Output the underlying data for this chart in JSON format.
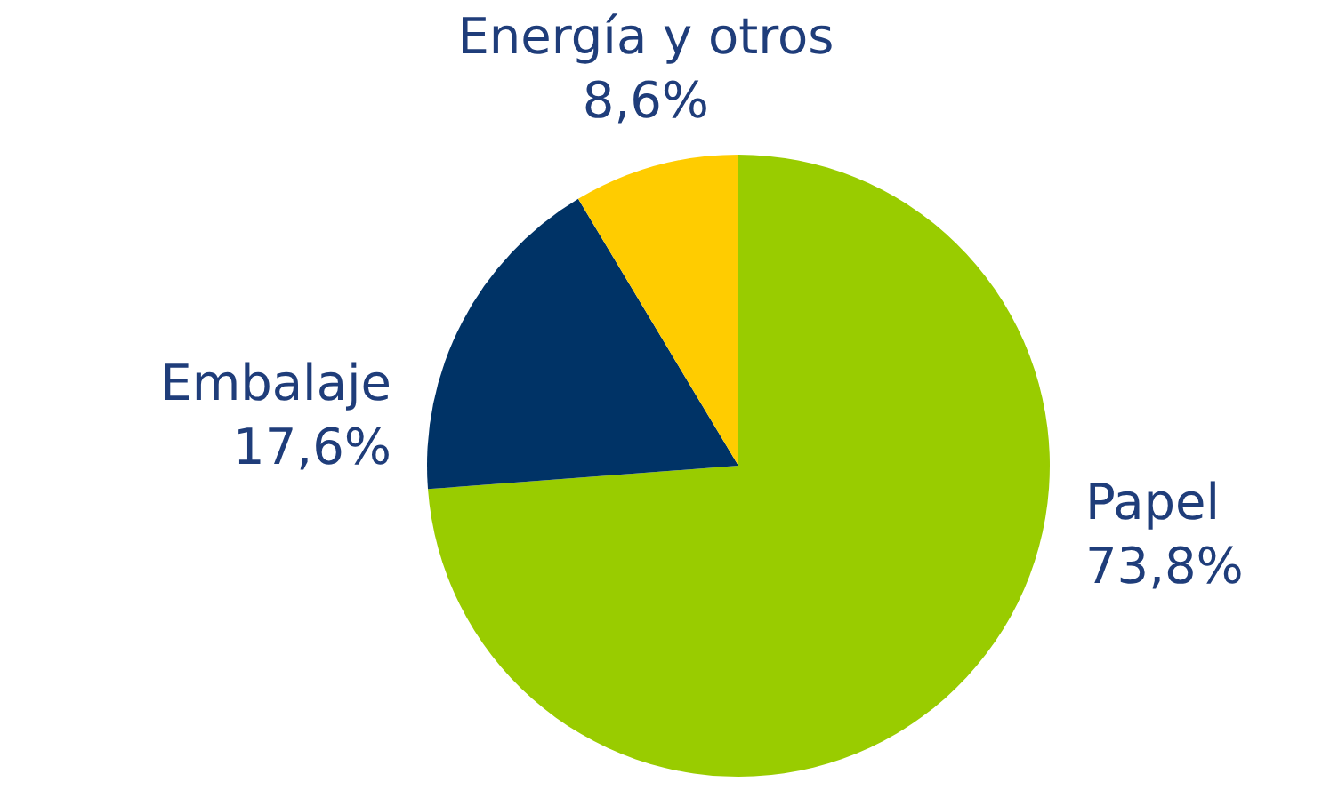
{
  "chart_data": {
    "type": "pie",
    "categories": [
      "Papel",
      "Embalaje",
      "Energía y otros"
    ],
    "values": [
      73.8,
      17.6,
      8.6
    ],
    "colors": [
      "#99cc00",
      "#003366",
      "#ffcc00"
    ],
    "value_labels": [
      "73,8%",
      "17,6%",
      "8,6%"
    ]
  }
}
